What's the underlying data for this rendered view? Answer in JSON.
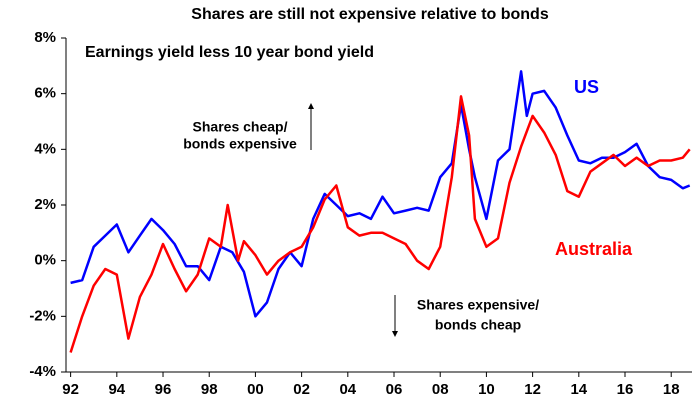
{
  "chart_data": {
    "type": "line",
    "title": "Shares are still not expensive relative to bonds",
    "subtitle": "Earnings yield less 10 year bond yield",
    "annotations": [
      "Shares cheap/",
      "bonds expensive",
      "Shares expensive/",
      "bonds cheap"
    ],
    "xlim": [
      1991.8,
      2018.9
    ],
    "xticks": [
      {
        "value": 1992,
        "label": "92"
      },
      {
        "value": 1994,
        "label": "94"
      },
      {
        "value": 1996,
        "label": "96"
      },
      {
        "value": 1998,
        "label": "98"
      },
      {
        "value": 2000,
        "label": "00"
      },
      {
        "value": 2002,
        "label": "02"
      },
      {
        "value": 2004,
        "label": "04"
      },
      {
        "value": 2006,
        "label": "06"
      },
      {
        "value": 2008,
        "label": "08"
      },
      {
        "value": 2010,
        "label": "10"
      },
      {
        "value": 2012,
        "label": "12"
      },
      {
        "value": 2014,
        "label": "14"
      },
      {
        "value": 2016,
        "label": "16"
      },
      {
        "value": 2018,
        "label": "18"
      }
    ],
    "ylim": [
      -4,
      8
    ],
    "yticks": [
      {
        "value": -4,
        "label": "-4%"
      },
      {
        "value": -2,
        "label": "-2%"
      },
      {
        "value": 0,
        "label": "0%"
      },
      {
        "value": 2,
        "label": "2%"
      },
      {
        "value": 4,
        "label": "4%"
      },
      {
        "value": 6,
        "label": "6%"
      },
      {
        "value": 8,
        "label": "8%"
      }
    ],
    "grid": false,
    "series": [
      {
        "name": "US",
        "color": "#0000ff",
        "x": [
          1992.0,
          1992.5,
          1993.0,
          1993.5,
          1994.0,
          1994.5,
          1995.0,
          1995.5,
          1996.0,
          1996.5,
          1997.0,
          1997.5,
          1998.0,
          1998.5,
          1999.0,
          1999.5,
          2000.0,
          2000.5,
          2001.0,
          2001.5,
          2002.0,
          2002.5,
          2003.0,
          2003.5,
          2004.0,
          2004.5,
          2005.0,
          2005.5,
          2006.0,
          2006.5,
          2007.0,
          2007.5,
          2008.0,
          2008.5,
          2008.9,
          2009.25,
          2009.5,
          2010.0,
          2010.5,
          2011.0,
          2011.5,
          2011.75,
          2012.0,
          2012.5,
          2013.0,
          2013.5,
          2014.0,
          2014.5,
          2015.0,
          2015.5,
          2016.0,
          2016.5,
          2017.0,
          2017.5,
          2018.0,
          2018.5,
          2018.8
        ],
        "values": [
          -0.8,
          -0.7,
          0.5,
          0.9,
          1.3,
          0.3,
          0.9,
          1.5,
          1.1,
          0.6,
          -0.2,
          -0.2,
          -0.7,
          0.5,
          0.3,
          -0.4,
          -2.0,
          -1.5,
          -0.3,
          0.3,
          -0.2,
          1.5,
          2.4,
          2.0,
          1.6,
          1.7,
          1.5,
          2.3,
          1.7,
          1.8,
          1.9,
          1.8,
          3.0,
          3.5,
          5.6,
          4.0,
          3.0,
          1.5,
          3.6,
          4.0,
          6.8,
          5.2,
          6.0,
          6.1,
          5.5,
          4.5,
          3.6,
          3.5,
          3.7,
          3.7,
          3.9,
          4.2,
          3.4,
          3.0,
          2.9,
          2.6,
          2.7
        ]
      },
      {
        "name": "Australia",
        "color": "#ff0000",
        "x": [
          1992.0,
          1992.5,
          1993.0,
          1993.5,
          1994.0,
          1994.5,
          1995.0,
          1995.5,
          1996.0,
          1996.5,
          1997.0,
          1997.5,
          1998.0,
          1998.5,
          1998.8,
          1999.25,
          1999.5,
          2000.0,
          2000.5,
          2001.0,
          2001.5,
          2002.0,
          2002.5,
          2003.0,
          2003.5,
          2004.0,
          2004.5,
          2005.0,
          2005.5,
          2006.0,
          2006.5,
          2007.0,
          2007.5,
          2008.0,
          2008.5,
          2008.9,
          2009.25,
          2009.5,
          2010.0,
          2010.5,
          2011.0,
          2011.5,
          2012.0,
          2012.5,
          2013.0,
          2013.5,
          2014.0,
          2014.5,
          2015.0,
          2015.5,
          2016.0,
          2016.5,
          2017.0,
          2017.5,
          2018.0,
          2018.5,
          2018.8
        ],
        "values": [
          -3.3,
          -2.0,
          -0.9,
          -0.3,
          -0.5,
          -2.8,
          -1.3,
          -0.5,
          0.6,
          -0.3,
          -1.1,
          -0.5,
          0.8,
          0.5,
          2.0,
          0.0,
          0.7,
          0.2,
          -0.5,
          0.0,
          0.3,
          0.5,
          1.2,
          2.2,
          2.7,
          1.2,
          0.9,
          1.0,
          1.0,
          0.8,
          0.6,
          0.0,
          -0.3,
          0.5,
          3.0,
          5.9,
          4.5,
          1.5,
          0.5,
          0.8,
          2.8,
          4.1,
          5.2,
          4.6,
          3.8,
          2.5,
          2.3,
          3.2,
          3.5,
          3.8,
          3.4,
          3.7,
          3.4,
          3.6,
          3.6,
          3.7,
          4.0
        ]
      }
    ]
  }
}
